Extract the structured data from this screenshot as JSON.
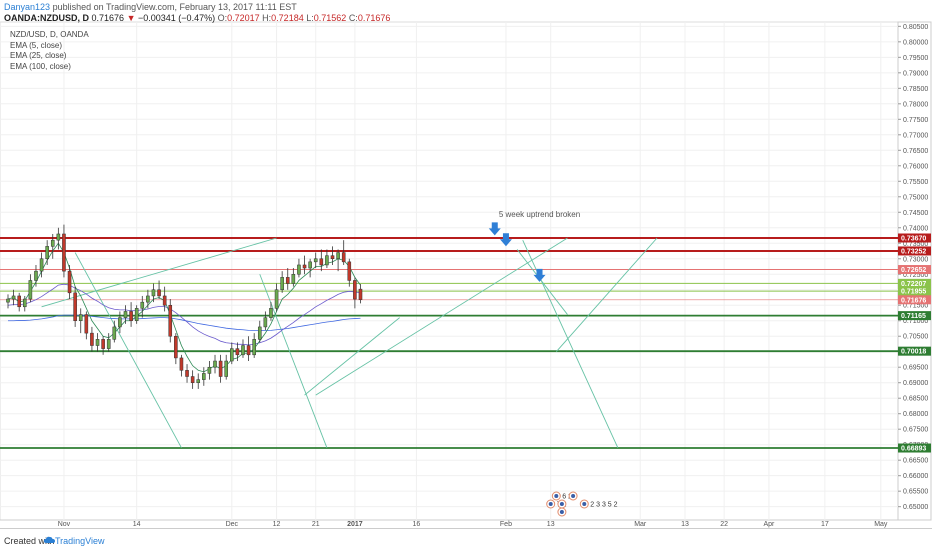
{
  "header": {
    "username": "Danyan123",
    "published_text": "published on TradingView.com, February 13, 2017 11:11 EST"
  },
  "quote": {
    "symbol": "OANDA:NZDUSD, D",
    "last": "0.71676",
    "change_marker": "▼",
    "change": "−0.00341 (−0.47%)",
    "o_label": "O:",
    "o": "0.72017",
    "h_label": "H:",
    "h": "0.72184",
    "l_label": "L:",
    "l": "0.71562",
    "c_label": "C:",
    "c": "0.71676"
  },
  "legend": {
    "title": "NZD/USD, D, OANDA",
    "items": [
      "EMA (5, close)",
      "EMA (25, close)",
      "EMA (100, close)"
    ]
  },
  "annotation": "5 week uptrend broken",
  "footer": {
    "created_with": "Created with",
    "brand": "TradingView"
  },
  "colors": {
    "bull": "#6aa84f",
    "bear": "#c0392b",
    "dark_red": "#b71c1c",
    "red": "#e57373",
    "dark_green": "#2e7d32",
    "light_green": "#8bc34a",
    "trend": "#66c2a5",
    "ema_fast": "#2e8b57",
    "ema_mid": "#6a5acd",
    "ema_slow": "#4169e1",
    "arrow": "#2f7fd6"
  },
  "chart_data": {
    "type": "candlestick",
    "ylim": [
      0.6457,
      0.8064
    ],
    "y_ticks": [
      "0.80500",
      "0.80000",
      "0.79500",
      "0.79000",
      "0.78500",
      "0.78000",
      "0.77500",
      "0.77000",
      "0.76500",
      "0.76000",
      "0.75500",
      "0.75000",
      "0.74500",
      "0.74000",
      "0.73500",
      "0.73000",
      "0.72500",
      "0.72000",
      "0.71500",
      "0.71000",
      "0.70500",
      "0.70000",
      "0.69500",
      "0.69000",
      "0.68500",
      "0.68000",
      "0.67500",
      "0.67000",
      "0.66500",
      "0.66000",
      "0.65500",
      "0.65000"
    ],
    "x_labels": [
      {
        "label": "Nov",
        "day": 10
      },
      {
        "label": "14",
        "day": 23
      },
      {
        "label": "Dec",
        "day": 40
      },
      {
        "label": "12",
        "day": 48
      },
      {
        "label": "21",
        "day": 55
      },
      {
        "label": "2017",
        "day": 62
      },
      {
        "label": "16",
        "day": 73
      },
      {
        "label": "Feb",
        "day": 89
      },
      {
        "label": "13",
        "day": 97
      },
      {
        "label": "Mar",
        "day": 113
      },
      {
        "label": "13",
        "day": 121
      },
      {
        "label": "22",
        "day": 128
      },
      {
        "label": "Apr",
        "day": 136
      },
      {
        "label": "17",
        "day": 146
      },
      {
        "label": "May",
        "day": 156
      }
    ],
    "candles": [
      {
        "o": 0.716,
        "h": 0.7185,
        "l": 0.714,
        "c": 0.717
      },
      {
        "o": 0.717,
        "h": 0.72,
        "l": 0.715,
        "c": 0.718
      },
      {
        "o": 0.718,
        "h": 0.719,
        "l": 0.713,
        "c": 0.7145
      },
      {
        "o": 0.7145,
        "h": 0.718,
        "l": 0.713,
        "c": 0.717
      },
      {
        "o": 0.717,
        "h": 0.725,
        "l": 0.716,
        "c": 0.723
      },
      {
        "o": 0.723,
        "h": 0.728,
        "l": 0.721,
        "c": 0.726
      },
      {
        "o": 0.726,
        "h": 0.732,
        "l": 0.724,
        "c": 0.73
      },
      {
        "o": 0.73,
        "h": 0.736,
        "l": 0.728,
        "c": 0.734
      },
      {
        "o": 0.734,
        "h": 0.738,
        "l": 0.73,
        "c": 0.736
      },
      {
        "o": 0.736,
        "h": 0.74,
        "l": 0.733,
        "c": 0.738
      },
      {
        "o": 0.738,
        "h": 0.741,
        "l": 0.724,
        "c": 0.726
      },
      {
        "o": 0.726,
        "h": 0.728,
        "l": 0.717,
        "c": 0.719
      },
      {
        "o": 0.719,
        "h": 0.721,
        "l": 0.708,
        "c": 0.71
      },
      {
        "o": 0.71,
        "h": 0.714,
        "l": 0.706,
        "c": 0.712
      },
      {
        "o": 0.712,
        "h": 0.713,
        "l": 0.704,
        "c": 0.706
      },
      {
        "o": 0.706,
        "h": 0.708,
        "l": 0.7,
        "c": 0.702
      },
      {
        "o": 0.702,
        "h": 0.706,
        "l": 0.7,
        "c": 0.704
      },
      {
        "o": 0.704,
        "h": 0.705,
        "l": 0.699,
        "c": 0.701
      },
      {
        "o": 0.701,
        "h": 0.706,
        "l": 0.7,
        "c": 0.704
      },
      {
        "o": 0.704,
        "h": 0.71,
        "l": 0.703,
        "c": 0.708
      },
      {
        "o": 0.708,
        "h": 0.713,
        "l": 0.706,
        "c": 0.711
      },
      {
        "o": 0.711,
        "h": 0.715,
        "l": 0.709,
        "c": 0.713
      },
      {
        "o": 0.713,
        "h": 0.716,
        "l": 0.708,
        "c": 0.71
      },
      {
        "o": 0.71,
        "h": 0.715,
        "l": 0.709,
        "c": 0.714
      },
      {
        "o": 0.714,
        "h": 0.718,
        "l": 0.711,
        "c": 0.716
      },
      {
        "o": 0.716,
        "h": 0.72,
        "l": 0.714,
        "c": 0.718
      },
      {
        "o": 0.718,
        "h": 0.722,
        "l": 0.716,
        "c": 0.72
      },
      {
        "o": 0.72,
        "h": 0.723,
        "l": 0.717,
        "c": 0.718
      },
      {
        "o": 0.718,
        "h": 0.721,
        "l": 0.713,
        "c": 0.715
      },
      {
        "o": 0.715,
        "h": 0.717,
        "l": 0.703,
        "c": 0.705
      },
      {
        "o": 0.705,
        "h": 0.706,
        "l": 0.696,
        "c": 0.698
      },
      {
        "o": 0.698,
        "h": 0.699,
        "l": 0.692,
        "c": 0.694
      },
      {
        "o": 0.694,
        "h": 0.696,
        "l": 0.69,
        "c": 0.692
      },
      {
        "o": 0.692,
        "h": 0.694,
        "l": 0.688,
        "c": 0.69
      },
      {
        "o": 0.69,
        "h": 0.693,
        "l": 0.688,
        "c": 0.691
      },
      {
        "o": 0.691,
        "h": 0.695,
        "l": 0.689,
        "c": 0.693
      },
      {
        "o": 0.693,
        "h": 0.697,
        "l": 0.691,
        "c": 0.695
      },
      {
        "o": 0.695,
        "h": 0.699,
        "l": 0.693,
        "c": 0.697
      },
      {
        "o": 0.697,
        "h": 0.699,
        "l": 0.69,
        "c": 0.692
      },
      {
        "o": 0.692,
        "h": 0.699,
        "l": 0.691,
        "c": 0.697
      },
      {
        "o": 0.697,
        "h": 0.703,
        "l": 0.696,
        "c": 0.701
      },
      {
        "o": 0.701,
        "h": 0.703,
        "l": 0.697,
        "c": 0.699
      },
      {
        "o": 0.699,
        "h": 0.704,
        "l": 0.698,
        "c": 0.702
      },
      {
        "o": 0.702,
        "h": 0.705,
        "l": 0.697,
        "c": 0.699
      },
      {
        "o": 0.699,
        "h": 0.706,
        "l": 0.698,
        "c": 0.704
      },
      {
        "o": 0.704,
        "h": 0.71,
        "l": 0.703,
        "c": 0.708
      },
      {
        "o": 0.708,
        "h": 0.713,
        "l": 0.707,
        "c": 0.711
      },
      {
        "o": 0.711,
        "h": 0.716,
        "l": 0.71,
        "c": 0.714
      },
      {
        "o": 0.714,
        "h": 0.722,
        "l": 0.713,
        "c": 0.72
      },
      {
        "o": 0.72,
        "h": 0.726,
        "l": 0.719,
        "c": 0.724
      },
      {
        "o": 0.724,
        "h": 0.727,
        "l": 0.72,
        "c": 0.722
      },
      {
        "o": 0.722,
        "h": 0.727,
        "l": 0.721,
        "c": 0.725
      },
      {
        "o": 0.725,
        "h": 0.73,
        "l": 0.724,
        "c": 0.728
      },
      {
        "o": 0.728,
        "h": 0.731,
        "l": 0.725,
        "c": 0.727
      },
      {
        "o": 0.727,
        "h": 0.73,
        "l": 0.724,
        "c": 0.729
      },
      {
        "o": 0.729,
        "h": 0.732,
        "l": 0.727,
        "c": 0.73
      },
      {
        "o": 0.73,
        "h": 0.733,
        "l": 0.726,
        "c": 0.728
      },
      {
        "o": 0.728,
        "h": 0.733,
        "l": 0.727,
        "c": 0.731
      },
      {
        "o": 0.731,
        "h": 0.734,
        "l": 0.728,
        "c": 0.73
      },
      {
        "o": 0.73,
        "h": 0.733,
        "l": 0.726,
        "c": 0.732
      },
      {
        "o": 0.732,
        "h": 0.736,
        "l": 0.728,
        "c": 0.729
      },
      {
        "o": 0.729,
        "h": 0.73,
        "l": 0.721,
        "c": 0.723
      },
      {
        "o": 0.723,
        "h": 0.724,
        "l": 0.714,
        "c": 0.717
      },
      {
        "o": 0.7202,
        "h": 0.7218,
        "l": 0.7156,
        "c": 0.7168
      }
    ],
    "candle_start_day": 0,
    "ema_fast": [
      0.717,
      0.7175,
      0.716,
      0.7165,
      0.7195,
      0.7225,
      0.726,
      0.7295,
      0.7325,
      0.735,
      0.732,
      0.727,
      0.721,
      0.718,
      0.714,
      0.71,
      0.7075,
      0.705,
      0.7045,
      0.706,
      0.708,
      0.71,
      0.71,
      0.7115,
      0.713,
      0.715,
      0.717,
      0.7175,
      0.7165,
      0.712,
      0.707,
      0.702,
      0.6985,
      0.6955,
      0.694,
      0.6935,
      0.6945,
      0.6955,
      0.6945,
      0.6955,
      0.6975,
      0.698,
      0.6995,
      0.6995,
      0.701,
      0.7035,
      0.706,
      0.709,
      0.713,
      0.717,
      0.7185,
      0.7205,
      0.723,
      0.7245,
      0.726,
      0.7275,
      0.7275,
      0.7285,
      0.729,
      0.73,
      0.7295,
      0.7275,
      0.724,
      0.7215
    ],
    "ema_mid": [
      0.715,
      0.7152,
      0.7152,
      0.7154,
      0.716,
      0.7168,
      0.7178,
      0.719,
      0.7202,
      0.7215,
      0.7218,
      0.7215,
      0.7205,
      0.7197,
      0.7186,
      0.7173,
      0.7163,
      0.7151,
      0.7142,
      0.7137,
      0.7135,
      0.7135,
      0.7132,
      0.7133,
      0.7135,
      0.7138,
      0.7143,
      0.7146,
      0.7146,
      0.7138,
      0.7126,
      0.7111,
      0.7096,
      0.708,
      0.7067,
      0.7057,
      0.7049,
      0.7043,
      0.7034,
      0.7029,
      0.7027,
      0.7024,
      0.7024,
      0.7022,
      0.7024,
      0.7029,
      0.7035,
      0.7044,
      0.7056,
      0.707,
      0.7082,
      0.7094,
      0.7108,
      0.712,
      0.7132,
      0.7145,
      0.7155,
      0.7166,
      0.7175,
      0.7185,
      0.7192,
      0.7195,
      0.7193,
      0.719
    ],
    "ema_slow": [
      0.71,
      0.71,
      0.7101,
      0.7101,
      0.7102,
      0.7104,
      0.7106,
      0.7109,
      0.7112,
      0.7116,
      0.7118,
      0.7118,
      0.7118,
      0.7117,
      0.7116,
      0.7114,
      0.7112,
      0.711,
      0.7108,
      0.7107,
      0.7106,
      0.7106,
      0.7106,
      0.7106,
      0.7107,
      0.7108,
      0.7109,
      0.711,
      0.711,
      0.7109,
      0.7106,
      0.7103,
      0.7099,
      0.7095,
      0.7091,
      0.7088,
      0.7085,
      0.7082,
      0.7079,
      0.7076,
      0.7074,
      0.7072,
      0.7071,
      0.7069,
      0.7068,
      0.7068,
      0.7068,
      0.7069,
      0.7071,
      0.7073,
      0.7075,
      0.7078,
      0.7081,
      0.7084,
      0.7087,
      0.709,
      0.7093,
      0.7096,
      0.7098,
      0.7101,
      0.7104,
      0.7106,
      0.7107,
      0.7108
    ],
    "horizontal_lines": [
      {
        "price": 0.7367,
        "label": "0.73670",
        "kind": "dark_red"
      },
      {
        "price": 0.73252,
        "label": "0.73252",
        "kind": "dark_red"
      },
      {
        "price": 0.72652,
        "label": "0.72652",
        "kind": "red"
      },
      {
        "price": 0.72207,
        "label": "0.72207",
        "kind": "light_green"
      },
      {
        "price": 0.71955,
        "label": "0.71955",
        "kind": "light_green"
      },
      {
        "price": 0.71676,
        "label": "0.71676",
        "kind": "red_thin"
      },
      {
        "price": 0.71165,
        "label": "0.71165",
        "kind": "dark_green"
      },
      {
        "price": 0.70018,
        "label": "0.70018",
        "kind": "dark_green"
      },
      {
        "price": 0.66893,
        "label": "0.66893",
        "kind": "dark_green"
      }
    ],
    "trend_lines": [
      {
        "d1": 6,
        "p1": 0.7145,
        "d2": 48,
        "p2": 0.7367
      },
      {
        "d1": 12,
        "p1": 0.732,
        "d2": 31,
        "p2": 0.669
      },
      {
        "d1": 45,
        "p1": 0.725,
        "d2": 57,
        "p2": 0.669
      },
      {
        "d1": 53,
        "p1": 0.686,
        "d2": 70,
        "p2": 0.711
      },
      {
        "d1": 55,
        "p1": 0.686,
        "d2": 100,
        "p2": 0.7367
      },
      {
        "d1": 92,
        "p1": 0.736,
        "d2": 109,
        "p2": 0.669
      },
      {
        "d1": 98,
        "p1": 0.7,
        "d2": 116,
        "p2": 0.7367
      },
      {
        "d1": 91,
        "p1": 0.733,
        "d2": 100,
        "p2": 0.712
      }
    ],
    "arrows": [
      {
        "day": 87,
        "price": 0.7385
      },
      {
        "day": 89,
        "price": 0.735
      },
      {
        "day": 95,
        "price": 0.7235
      }
    ],
    "event_badges": [
      {
        "day": 98,
        "text": "6 2",
        "row": 0
      },
      {
        "day": 101,
        "text": "",
        "row": 0
      },
      {
        "day": 97,
        "text": "7 2",
        "row": 1
      },
      {
        "day": 99,
        "text": "",
        "row": 1
      },
      {
        "day": 103,
        "text": "2 3 3 5 2",
        "row": 1
      },
      {
        "day": 99,
        "text": "",
        "row": 2
      }
    ]
  }
}
